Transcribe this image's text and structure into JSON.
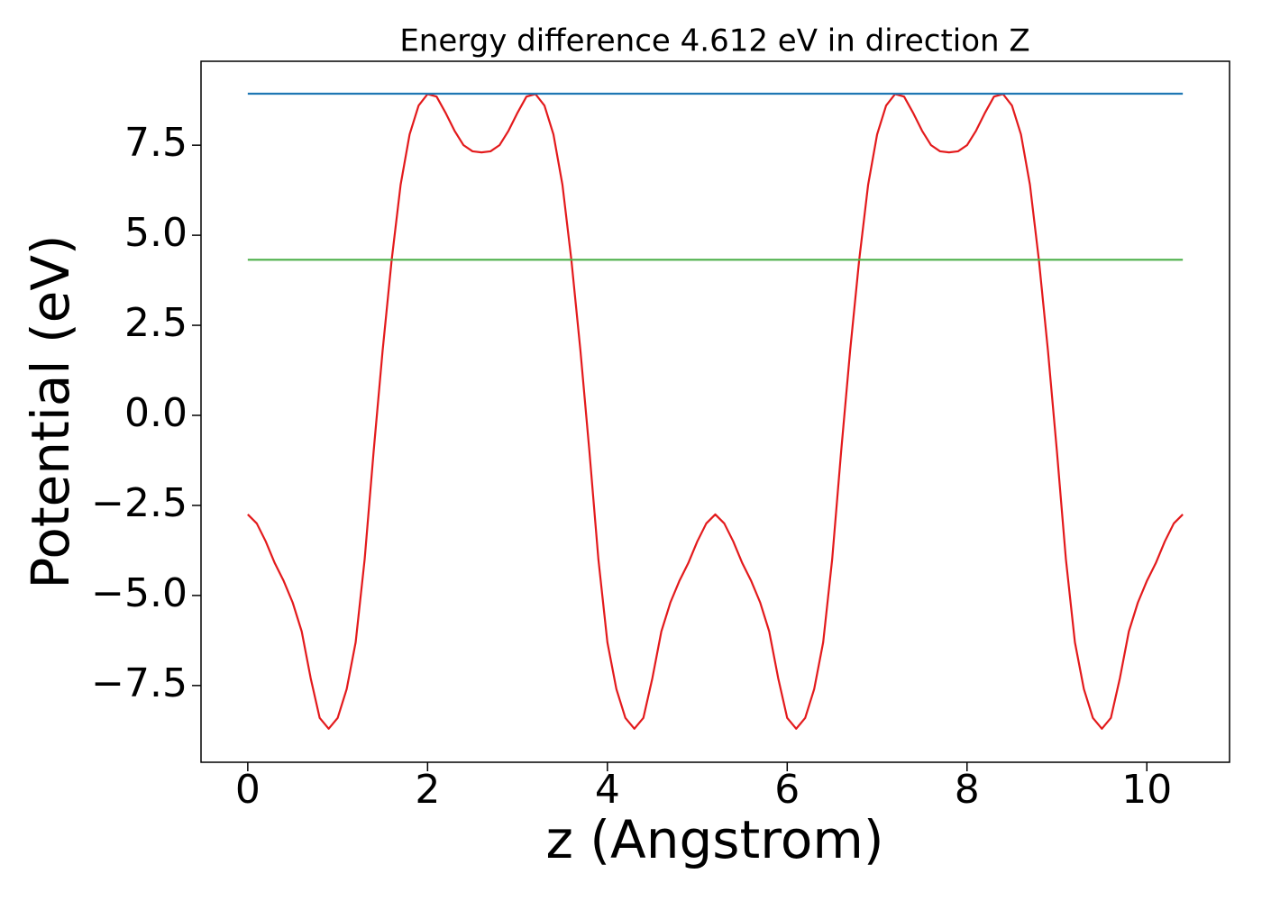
{
  "chart_data": {
    "type": "line",
    "title": "Energy difference 4.612 eV in direction Z",
    "xlabel": "z (Angstrom)",
    "ylabel": "Potential (eV)",
    "xlim": [
      -0.52,
      10.92
    ],
    "ylim": [
      -9.63,
      9.83
    ],
    "xticks": [
      0,
      2,
      4,
      6,
      8,
      10
    ],
    "yticks": [
      {
        "value": -7.5,
        "label": "−7.5"
      },
      {
        "value": -5,
        "label": "−5.0"
      },
      {
        "value": -2.5,
        "label": "−2.5"
      },
      {
        "value": 0,
        "label": "0.0"
      },
      2.5,
      {
        "value": 5,
        "label": "5.0"
      },
      7.5
    ],
    "grid": false,
    "series": [
      {
        "color": "#e31a1c",
        "x": [
          0,
          0.1,
          0.2,
          0.3,
          0.4,
          0.5,
          0.6,
          0.7,
          0.8,
          0.9,
          1,
          1.1,
          1.2,
          1.3,
          1.4,
          1.5,
          1.6,
          1.7,
          1.8,
          1.9,
          2,
          2.1,
          2.2,
          2.3,
          2.4,
          2.5,
          2.6,
          2.7,
          2.8,
          2.9,
          3,
          3.1,
          3.2,
          3.3,
          3.4,
          3.5,
          3.6,
          3.7,
          3.8,
          3.9,
          4,
          4.1,
          4.2,
          4.3,
          4.4,
          4.5,
          4.6,
          4.7,
          4.8,
          4.9,
          5,
          5.1,
          5.2,
          5.3,
          5.4,
          5.5,
          5.6,
          5.7,
          5.8,
          5.9,
          6,
          6.1,
          6.2,
          6.3,
          6.4,
          6.5,
          6.6,
          6.7,
          6.8,
          6.9,
          7,
          7.1,
          7.2,
          7.3,
          7.4,
          7.5,
          7.6,
          7.7,
          7.8,
          7.9,
          8,
          8.1,
          8.2,
          8.3,
          8.4,
          8.5,
          8.6,
          8.7,
          8.8,
          8.9,
          9,
          9.1,
          9.2,
          9.3,
          9.4,
          9.5,
          9.6,
          9.7,
          9.8,
          9.9,
          10,
          10.1,
          10.2,
          10.3,
          10.4
        ],
        "values": [
          -2.75,
          -3.0,
          -3.5,
          -4.1,
          -4.6,
          -5.2,
          -6.0,
          -7.3,
          -8.4,
          -8.7,
          -8.4,
          -7.6,
          -6.3,
          -4.0,
          -1.0,
          1.8,
          4.3,
          6.4,
          7.8,
          8.6,
          8.92,
          8.85,
          8.4,
          7.9,
          7.5,
          7.33,
          7.3,
          7.33,
          7.5,
          7.9,
          8.4,
          8.85,
          8.92,
          8.6,
          7.8,
          6.4,
          4.3,
          1.8,
          -1.0,
          -4.0,
          -6.3,
          -7.6,
          -8.4,
          -8.7,
          -8.4,
          -7.3,
          -6.0,
          -5.2,
          -4.6,
          -4.1,
          -3.5,
          -3.0,
          -2.75,
          -3.0,
          -3.5,
          -4.1,
          -4.6,
          -5.2,
          -6.0,
          -7.3,
          -8.4,
          -8.7,
          -8.4,
          -7.6,
          -6.3,
          -4.0,
          -1.0,
          1.8,
          4.3,
          6.4,
          7.8,
          8.6,
          8.92,
          8.85,
          8.4,
          7.9,
          7.5,
          7.33,
          7.3,
          7.33,
          7.5,
          7.9,
          8.4,
          8.85,
          8.92,
          8.6,
          7.8,
          6.4,
          4.3,
          1.8,
          -1.0,
          -4.0,
          -6.3,
          -7.6,
          -8.4,
          -8.7,
          -8.4,
          -7.3,
          -6.0,
          -5.2,
          -4.6,
          -4.1,
          -3.5,
          -3.0,
          -2.75
        ]
      },
      {
        "color": "#1f77b4",
        "x": [
          0,
          10.4
        ],
        "values": [
          8.93,
          8.93
        ]
      },
      {
        "color": "#4daf4a",
        "x": [
          0,
          10.4
        ],
        "values": [
          4.32,
          4.32
        ]
      }
    ]
  }
}
